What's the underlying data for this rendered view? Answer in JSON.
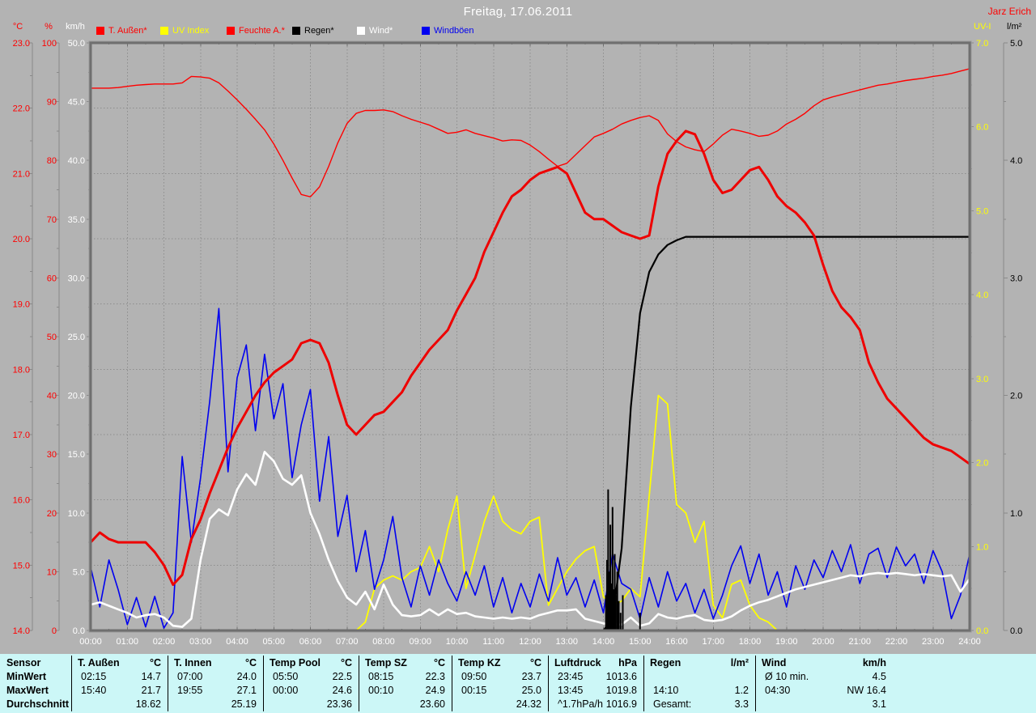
{
  "header": {
    "title": "Freitag, 17.06.2011",
    "author": "Jarz Erich"
  },
  "legend": {
    "items": [
      {
        "label": "T. Außen*",
        "color": "#ff0000"
      },
      {
        "label": "UV Index",
        "color": "#ffff00"
      },
      {
        "label": "Feuchte A.*",
        "color": "#ff0000"
      },
      {
        "label": "Regen*",
        "color": "#000000"
      },
      {
        "label": "Wind*",
        "color": "#ffffff"
      },
      {
        "label": "Windböen",
        "color": "#0000f0"
      }
    ]
  },
  "chart_data": {
    "type": "line",
    "title": "Freitag, 17.06.2011",
    "x_range_hours": [
      0,
      24
    ],
    "x_step_hours": 0.25,
    "grid": "dashed, hourly vertical, 1°C horizontal",
    "x_labels": [
      "00:00",
      "01:00",
      "02:00",
      "03:00",
      "04:00",
      "05:00",
      "06:00",
      "07:00",
      "08:00",
      "09:00",
      "10:00",
      "11:00",
      "12:00",
      "13:00",
      "14:00",
      "15:00",
      "16:00",
      "17:00",
      "18:00",
      "19:00",
      "20:00",
      "21:00",
      "22:00",
      "23:00",
      "24:00"
    ],
    "axes": {
      "temp": {
        "unit": "°C",
        "color": "#ff0000",
        "range": [
          14,
          23
        ],
        "ticks": [
          "23.0",
          "22.0",
          "21.0",
          "20.0",
          "19.0",
          "18.0",
          "17.0",
          "16.0",
          "15.0",
          "14.0"
        ]
      },
      "humidity": {
        "unit": "%",
        "color": "#ff0000",
        "range": [
          0,
          100
        ],
        "ticks": [
          "100",
          "90",
          "80",
          "70",
          "60",
          "50",
          "40",
          "30",
          "20",
          "10",
          "0"
        ]
      },
      "wind": {
        "unit": "km/h",
        "color": "#ffffff",
        "range": [
          0,
          50
        ],
        "ticks": [
          "50.0",
          "45.0",
          "40.0",
          "35.0",
          "30.0",
          "25.0",
          "20.0",
          "15.0",
          "10.0",
          "5.0",
          "0.0"
        ]
      },
      "uv": {
        "unit": "UV-I",
        "color": "#ffff00",
        "range": [
          0,
          7
        ],
        "ticks": [
          "7.0",
          "6.0",
          "5.0",
          "4.0",
          "3.0",
          "2.0",
          "1.0",
          "0.0"
        ]
      },
      "rain": {
        "unit": "l/m²",
        "color": "#000000",
        "range": [
          0,
          5
        ],
        "ticks": [
          "5.0",
          "4.0",
          "3.0",
          "2.0",
          "1.0",
          "0.0"
        ]
      }
    },
    "series": [
      {
        "name": "UV Index",
        "axis": "uv",
        "color": "#ffff00",
        "width": 1.8,
        "values": [
          0,
          0,
          0,
          0,
          0,
          0,
          0,
          0,
          0,
          0,
          0,
          0,
          0,
          0,
          0,
          0,
          0,
          0,
          0,
          0,
          0,
          0,
          0,
          0,
          0,
          0,
          0,
          0,
          0,
          0,
          0.1,
          0.5,
          0.6,
          0.65,
          0.6,
          0.7,
          0.75,
          1.0,
          0.7,
          1.2,
          1.6,
          0.5,
          0.9,
          1.3,
          1.6,
          1.3,
          1.2,
          1.15,
          1.3,
          1.35,
          0.3,
          0.5,
          0.7,
          0.85,
          0.95,
          1.0,
          0.4,
          0.3,
          0.35,
          0.5,
          0.4,
          1.6,
          2.8,
          2.7,
          1.5,
          1.4,
          1.05,
          1.3,
          0.3,
          0.15,
          0.55,
          0.6,
          0.3,
          0.15,
          0.1,
          0,
          0,
          0,
          0,
          0,
          0,
          0,
          0,
          0,
          0,
          0,
          0,
          0,
          0,
          0,
          0,
          0,
          0,
          0,
          0,
          0,
          0
        ]
      },
      {
        "name": "Windböen",
        "axis": "wind",
        "color": "#0000f0",
        "width": 1.6,
        "values": [
          5.4,
          2.0,
          6.0,
          3.5,
          0.5,
          2.8,
          0.3,
          2.9,
          0.2,
          1.5,
          14.8,
          7.5,
          13.0,
          19.5,
          27.4,
          13.5,
          21.5,
          24.3,
          17.0,
          23.5,
          18.0,
          21.0,
          13.0,
          17.5,
          20.5,
          11.0,
          16.5,
          8.0,
          11.5,
          5.0,
          8.5,
          3.5,
          6.0,
          9.7,
          4.5,
          2.0,
          5.5,
          3.0,
          6.0,
          4.0,
          2.5,
          5.0,
          3.0,
          5.5,
          2.0,
          4.5,
          1.5,
          4.0,
          2.0,
          4.8,
          2.5,
          6.2,
          3.0,
          4.5,
          2.0,
          4.3,
          1.5,
          6.5,
          4.0,
          3.5,
          1.0,
          4.5,
          2.0,
          5.0,
          2.5,
          4.0,
          1.5,
          3.5,
          1.0,
          3.0,
          5.5,
          7.2,
          4.0,
          6.5,
          3.0,
          5.0,
          2.0,
          5.5,
          3.5,
          6.0,
          4.5,
          6.8,
          5.0,
          7.3,
          4.0,
          6.5,
          7.0,
          4.5,
          7.1,
          5.5,
          6.5,
          4.0,
          6.8,
          5.0,
          1.0,
          3.0,
          6.5
        ]
      },
      {
        "name": "Wind",
        "axis": "wind",
        "color": "#ffffff",
        "width": 2.6,
        "values": [
          2.2,
          2.4,
          2.1,
          1.8,
          1.5,
          1.1,
          1.3,
          1.4,
          1.1,
          0.4,
          0.3,
          1.0,
          6.0,
          9.5,
          10.3,
          9.8,
          12.0,
          13.3,
          12.4,
          15.2,
          14.4,
          12.9,
          12.4,
          13.2,
          10.0,
          8.2,
          6.0,
          4.2,
          2.8,
          2.2,
          3.3,
          1.8,
          3.9,
          2.2,
          1.3,
          1.2,
          1.3,
          1.8,
          1.3,
          1.8,
          1.4,
          1.5,
          1.2,
          1.1,
          1.0,
          1.1,
          1.0,
          1.1,
          1.0,
          1.3,
          1.5,
          1.7,
          1.7,
          1.8,
          1.0,
          0.8,
          0.6,
          0.5,
          0.5,
          1.1,
          0.4,
          0.6,
          1.4,
          1.1,
          1.0,
          1.2,
          1.3,
          0.9,
          0.8,
          0.9,
          1.2,
          1.7,
          2.1,
          2.4,
          2.6,
          2.9,
          3.2,
          3.5,
          3.7,
          3.9,
          4.1,
          4.3,
          4.5,
          4.7,
          4.6,
          4.8,
          4.9,
          4.8,
          4.9,
          4.8,
          4.7,
          4.8,
          4.7,
          4.6,
          4.7,
          3.3,
          4.4
        ]
      },
      {
        "name": "Regen Summe",
        "axis": "rain",
        "color": "#000000",
        "width": 2.2,
        "values": [
          0,
          0,
          0,
          0,
          0,
          0,
          0,
          0,
          0,
          0,
          0,
          0,
          0,
          0,
          0,
          0,
          0,
          0,
          0,
          0,
          0,
          0,
          0,
          0,
          0,
          0,
          0,
          0,
          0,
          0,
          0,
          0,
          0,
          0,
          0,
          0,
          0,
          0,
          0,
          0,
          0,
          0,
          0,
          0,
          0,
          0,
          0,
          0,
          0,
          0,
          0,
          0,
          0,
          0,
          0,
          0,
          0,
          0.1,
          0.7,
          1.9,
          2.7,
          3.05,
          3.2,
          3.28,
          3.32,
          3.35,
          3.35,
          3.35,
          3.35,
          3.35,
          3.35,
          3.35,
          3.35,
          3.35,
          3.35,
          3.35,
          3.35,
          3.35,
          3.35,
          3.35,
          3.35,
          3.35,
          3.35,
          3.35,
          3.35,
          3.35,
          3.35,
          3.35,
          3.35,
          3.35,
          3.35,
          3.35,
          3.35,
          3.35,
          3.35,
          3.35,
          3.35
        ]
      },
      {
        "name": "Feuchte A.",
        "axis": "humidity",
        "color": "#ff0000",
        "width": 1.4,
        "values": [
          92.3,
          92.3,
          92.3,
          92.4,
          92.6,
          92.8,
          92.9,
          93.0,
          93.0,
          93.0,
          93.2,
          94.3,
          94.2,
          94.0,
          93.2,
          91.8,
          90.3,
          88.7,
          87.0,
          85.2,
          82.8,
          80.0,
          77.0,
          74.2,
          73.8,
          75.5,
          79.0,
          83.0,
          86.3,
          88.0,
          88.5,
          88.5,
          88.6,
          88.3,
          87.6,
          87.0,
          86.5,
          86.0,
          85.3,
          84.6,
          84.8,
          85.2,
          84.6,
          84.2,
          83.8,
          83.3,
          83.5,
          83.4,
          82.6,
          81.5,
          80.2,
          79.0,
          79.5,
          81.0,
          82.5,
          84.0,
          84.6,
          85.3,
          86.2,
          86.8,
          87.3,
          87.6,
          86.8,
          84.5,
          83.2,
          82.3,
          81.8,
          81.5,
          82.8,
          84.3,
          85.3,
          85.0,
          84.6,
          84.1,
          84.3,
          85.0,
          86.2,
          87.0,
          88.0,
          89.3,
          90.3,
          90.8,
          91.2,
          91.6,
          92.0,
          92.4,
          92.8,
          93.0,
          93.3,
          93.6,
          93.8,
          94.0,
          94.3,
          94.5,
          94.8,
          95.2,
          95.6
        ]
      },
      {
        "name": "T. Außen",
        "axis": "temp",
        "color": "#ee0000",
        "width": 3,
        "values": [
          15.35,
          15.5,
          15.4,
          15.35,
          15.35,
          15.35,
          15.35,
          15.2,
          15.0,
          14.7,
          14.85,
          15.4,
          15.7,
          16.1,
          16.45,
          16.8,
          17.1,
          17.35,
          17.6,
          17.8,
          17.95,
          18.05,
          18.15,
          18.4,
          18.45,
          18.4,
          18.1,
          17.6,
          17.15,
          17.0,
          17.15,
          17.3,
          17.35,
          17.5,
          17.65,
          17.9,
          18.1,
          18.3,
          18.45,
          18.6,
          18.9,
          19.15,
          19.4,
          19.8,
          20.1,
          20.4,
          20.65,
          20.75,
          20.9,
          21.0,
          21.05,
          21.1,
          21.0,
          20.7,
          20.4,
          20.3,
          20.3,
          20.2,
          20.1,
          20.05,
          20.0,
          20.05,
          20.8,
          21.3,
          21.5,
          21.65,
          21.6,
          21.3,
          20.9,
          20.7,
          20.75,
          20.9,
          21.05,
          21.1,
          20.9,
          20.65,
          20.5,
          20.4,
          20.25,
          20.05,
          19.6,
          19.2,
          18.95,
          18.8,
          18.6,
          18.1,
          17.8,
          17.55,
          17.4,
          17.25,
          17.1,
          16.95,
          16.85,
          16.8,
          16.75,
          16.65,
          16.55
        ]
      }
    ],
    "rain_spikes": [
      [
        14.07,
        0.3
      ],
      [
        14.1,
        0.6
      ],
      [
        14.13,
        1.2
      ],
      [
        14.16,
        0.5
      ],
      [
        14.19,
        0.9
      ],
      [
        14.22,
        0.4
      ],
      [
        14.25,
        1.05
      ],
      [
        14.28,
        0.35
      ],
      [
        14.31,
        0.65
      ],
      [
        14.34,
        0.3
      ],
      [
        14.38,
        0.5
      ],
      [
        14.42,
        0.25
      ],
      [
        14.47,
        0.15
      ],
      [
        14.53,
        0.3
      ],
      [
        15.0,
        0.15
      ]
    ]
  },
  "table": {
    "row_labels": [
      "Sensor",
      "MinWert",
      "MaxWert",
      "Durchschnitt"
    ],
    "columns": [
      {
        "name": "T. Außen",
        "unit": "°C",
        "rows": [
          [
            "02:15",
            "14.7"
          ],
          [
            "15:40",
            "21.7"
          ],
          [
            "",
            "18.62"
          ]
        ]
      },
      {
        "name": "T. Innen",
        "unit": "°C",
        "rows": [
          [
            "07:00",
            "24.0"
          ],
          [
            "19:55",
            "27.1"
          ],
          [
            "",
            "25.19"
          ]
        ]
      },
      {
        "name": "Temp Pool",
        "unit": "°C",
        "rows": [
          [
            "05:50",
            "22.5"
          ],
          [
            "00:00",
            "24.6"
          ],
          [
            "",
            "23.36"
          ]
        ]
      },
      {
        "name": "Temp SZ",
        "unit": "°C",
        "rows": [
          [
            "08:15",
            "22.3"
          ],
          [
            "00:10",
            "24.9"
          ],
          [
            "",
            "23.60"
          ]
        ]
      },
      {
        "name": "Temp KZ",
        "unit": "°C",
        "rows": [
          [
            "09:50",
            "23.7"
          ],
          [
            "00:15",
            "25.0"
          ],
          [
            "",
            "24.32"
          ]
        ]
      },
      {
        "name": "Luftdruck",
        "unit": "hPa",
        "rows": [
          [
            "23:45",
            "1013.6"
          ],
          [
            "13:45",
            "1019.8"
          ],
          [
            "^1.7hPa/h",
            "1016.9"
          ]
        ]
      },
      {
        "name": "Regen",
        "unit": "l/m²",
        "rows": [
          [
            "",
            ""
          ],
          [
            "14:10",
            "1.2"
          ],
          [
            "Gesamt:",
            "3.3"
          ]
        ]
      },
      {
        "name": "Wind",
        "unit": "km/h",
        "rows": [
          [
            "Ø 10 min.",
            "4.5"
          ],
          [
            "04:30",
            "NW 16.4"
          ],
          [
            "",
            "3.1"
          ]
        ]
      }
    ]
  }
}
